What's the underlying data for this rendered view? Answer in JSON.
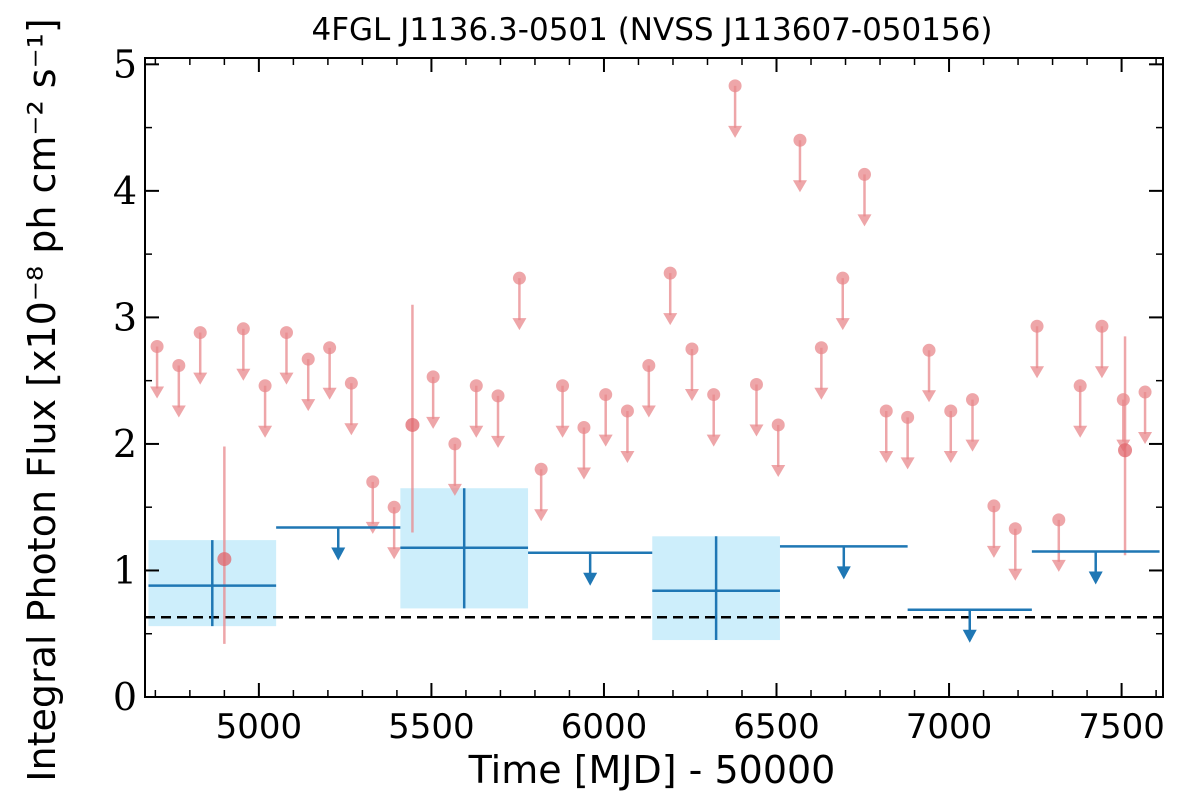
{
  "chart_data": {
    "type": "scatter",
    "title": "4FGL J1136.3-0501 (NVSS J113607-050156)",
    "xlabel": "Time [MJD] - 50000",
    "ylabel": "Integral Photon Flux [x10⁻⁸ ph cm⁻² s⁻¹]",
    "xlim": [
      4670,
      7620
    ],
    "ylim": [
      0,
      5.05
    ],
    "x_ticks": [
      5000,
      5500,
      6000,
      6500,
      7000,
      7500
    ],
    "y_ticks": [
      0,
      1,
      2,
      3,
      4,
      5
    ],
    "grid": false,
    "legend": "none",
    "reference_line": {
      "y": 0.63,
      "style": "dashed",
      "color": "#000000"
    },
    "colors": {
      "short_bins": "#e8888c",
      "long_bins": "#1f77b4",
      "uncertainty_box": "#cdeefb",
      "reference_line": "#000000"
    },
    "series": [
      {
        "points": [
          {
            "x": 4900,
            "y": 1.09,
            "ylo": 0.42,
            "yhi": 1.98
          },
          {
            "x": 5445,
            "y": 2.15,
            "ylo": 1.3,
            "yhi": 3.1
          },
          {
            "x": 7510,
            "y": 1.95,
            "ylo": 1.12,
            "yhi": 2.85
          }
        ],
        "upper_limits": [
          {
            "x": 4705,
            "y": 2.77
          },
          {
            "x": 4768,
            "y": 2.62
          },
          {
            "x": 4830,
            "y": 2.88
          },
          {
            "x": 4955,
            "y": 2.91
          },
          {
            "x": 5018,
            "y": 2.46
          },
          {
            "x": 5080,
            "y": 2.88
          },
          {
            "x": 5143,
            "y": 2.67
          },
          {
            "x": 5205,
            "y": 2.76
          },
          {
            "x": 5268,
            "y": 2.48
          },
          {
            "x": 5330,
            "y": 1.7
          },
          {
            "x": 5392,
            "y": 1.5
          },
          {
            "x": 5505,
            "y": 2.53
          },
          {
            "x": 5568,
            "y": 2.0
          },
          {
            "x": 5630,
            "y": 2.46
          },
          {
            "x": 5693,
            "y": 2.38
          },
          {
            "x": 5755,
            "y": 3.31
          },
          {
            "x": 5818,
            "y": 1.8
          },
          {
            "x": 5880,
            "y": 2.46
          },
          {
            "x": 5942,
            "y": 2.13
          },
          {
            "x": 6005,
            "y": 2.39
          },
          {
            "x": 6068,
            "y": 2.26
          },
          {
            "x": 6130,
            "y": 2.62
          },
          {
            "x": 6192,
            "y": 3.35
          },
          {
            "x": 6255,
            "y": 2.75
          },
          {
            "x": 6318,
            "y": 2.39
          },
          {
            "x": 6380,
            "y": 4.83
          },
          {
            "x": 6442,
            "y": 2.47
          },
          {
            "x": 6505,
            "y": 2.15
          },
          {
            "x": 6568,
            "y": 4.4
          },
          {
            "x": 6630,
            "y": 2.76
          },
          {
            "x": 6692,
            "y": 3.31
          },
          {
            "x": 6755,
            "y": 4.13
          },
          {
            "x": 6818,
            "y": 2.26
          },
          {
            "x": 6880,
            "y": 2.21
          },
          {
            "x": 6942,
            "y": 2.74
          },
          {
            "x": 7005,
            "y": 2.26
          },
          {
            "x": 7068,
            "y": 2.35
          },
          {
            "x": 7130,
            "y": 1.51
          },
          {
            "x": 7192,
            "y": 1.33
          },
          {
            "x": 7255,
            "y": 2.93
          },
          {
            "x": 7318,
            "y": 1.4
          },
          {
            "x": 7380,
            "y": 2.46
          },
          {
            "x": 7443,
            "y": 2.93
          },
          {
            "x": 7505,
            "y": 2.35
          },
          {
            "x": 7568,
            "y": 2.41
          }
        ]
      },
      {
        "bins": [
          {
            "x0": 4680,
            "x1": 5050,
            "y": 0.88,
            "ylo": 0.56,
            "yhi": 1.24
          },
          {
            "x0": 5410,
            "x1": 5780,
            "y": 1.18,
            "ylo": 0.7,
            "yhi": 1.65
          },
          {
            "x0": 6140,
            "x1": 6510,
            "y": 0.84,
            "ylo": 0.45,
            "yhi": 1.27
          }
        ],
        "upper_limits": [
          {
            "x0": 5050,
            "x1": 5410,
            "y": 1.34
          },
          {
            "x0": 5780,
            "x1": 6140,
            "y": 1.14
          },
          {
            "x0": 6510,
            "x1": 6880,
            "y": 1.19
          },
          {
            "x0": 6880,
            "x1": 7240,
            "y": 0.69
          },
          {
            "x0": 7240,
            "x1": 7610,
            "y": 1.15
          }
        ]
      }
    ]
  }
}
